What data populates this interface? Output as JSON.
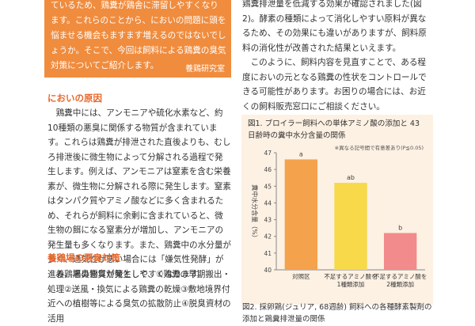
{
  "intro_box": {
    "text": "ているため、鶏糞が鶏舎に滞留しやすくなります。これらのことから、においの問題に頭を悩ませる機会もますます増えるのではないでしょうか。そこで、今回は飼料による鶏糞の臭気対策についてご紹介します。",
    "author": "養鶏研究室"
  },
  "sections": [
    {
      "heading": "においの原因",
      "text": "鶏糞中には、アンモニアや硫化水素など、約10種類の悪臭に関係する物質が含まれています。これらは鶏糞が排泄された直後よりも、むしろ排泄後に微生物によって分解される過程で発生します。例えば、アンモニアは窒素を含む栄養素が、微生物に分解される際に発生します。窒素はタンパク質やアミノ酸などに多く含まれるため、それらが飼料に余剰に含まれていると、微生物の餌になる窒素分が増加し、アンモニアの発生量も多くなります。また、鶏糞中の水分量が多く、通気性が悪い場合には「嫌気性発酵」が進み、悪臭物質が発生しやすくなります。"
    },
    {
      "heading": "養鶏場の悪臭対策",
      "text": "養鶏場の悪臭対策として、①鶏糞の早期搬出・処理②送風・換気による鶏糞の乾燥③敷地境界付近への植樹等による臭気の拡散防止④脱臭資材の活用"
    }
  ],
  "right_paragraphs": [
    "鶏糞排泄量を低減する効果が確認されました(図2)。酵素の種類によって消化しやすい原料が異なるため、その効果にも違いがありますが、飼料原料の消化性が改善された結果といえます。",
    "このように、飼料内容を見直すことで、ある程度においの元となる鶏糞の性状をコントロールできる可能性があります。お困りの場合には、お近くの飼料販売窓口にご相談ください。"
  ],
  "chart_data": {
    "type": "bar",
    "title": "図1. ブロイラー飼料への単体アミノ酸の添加と 43日齢時の糞中水分含量の関係",
    "note": "※異なる記号間で有意差あり(P≦0.05)",
    "ylabel": "糞中水分含量（%）",
    "categories": [
      "対照区",
      "不足するアミノ酸を\n1種類添加",
      "不足するアミノ酸を\n2種類添加"
    ],
    "values": [
      46.6,
      45.2,
      42.2
    ],
    "annotations": [
      "a",
      "ab",
      "b"
    ],
    "colors": [
      "#f5a24c",
      "#f7d94a",
      "#f28b8b"
    ],
    "ylim": [
      40,
      47
    ],
    "yticks": [
      40,
      41,
      42,
      43,
      44,
      45,
      46,
      47
    ]
  },
  "figure2_title": "図2. 採卵鶏(ジュリア, 68週齢) 飼料への各種酵素製剤の添加と鶏糞排泄量の関係"
}
